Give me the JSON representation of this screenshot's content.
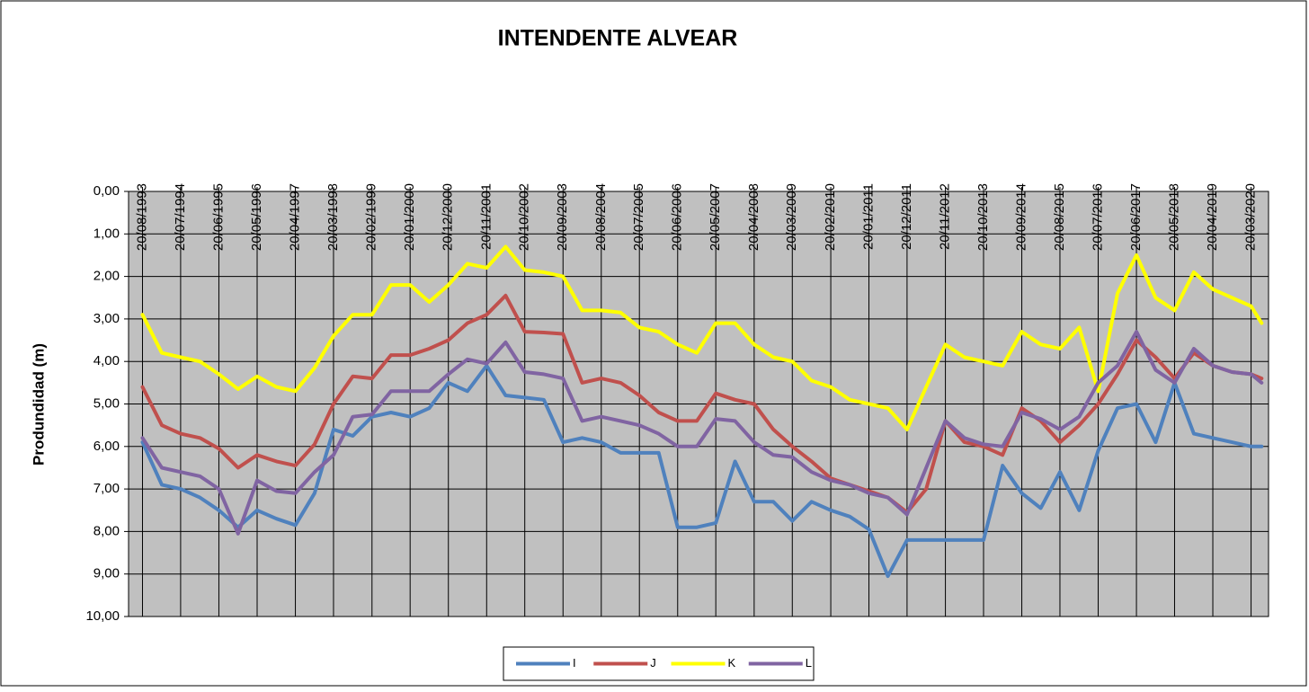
{
  "chart_data": {
    "type": "line",
    "title": "INTENDENTE ALVEAR",
    "y_label": "Produndidad (m)",
    "x": [
      "20/08/1993",
      "05/02/1994",
      "20/07/1994",
      "05/01/1995",
      "20/06/1995",
      "05/12/1995",
      "20/05/1996",
      "05/11/1996",
      "20/04/1997",
      "05/10/1997",
      "20/03/1998",
      "05/09/1998",
      "20/02/1999",
      "05/08/1999",
      "20/01/2000",
      "05/07/2000",
      "20/12/2000",
      "05/06/2001",
      "20/11/2001",
      "05/05/2002",
      "20/10/2002",
      "05/04/2003",
      "20/09/2003",
      "05/03/2004",
      "20/08/2004",
      "05/02/2005",
      "20/07/2005",
      "05/01/2006",
      "20/06/2006",
      "05/12/2006",
      "20/05/2007",
      "05/11/2007",
      "20/04/2008",
      "05/10/2008",
      "20/03/2009",
      "05/09/2009",
      "20/02/2010",
      "05/08/2010",
      "20/01/2011",
      "05/07/2011",
      "20/12/2011",
      "05/06/2012",
      "20/11/2012",
      "05/05/2013",
      "20/10/2013",
      "05/04/2014",
      "20/09/2014",
      "05/03/2015",
      "20/08/2015",
      "05/02/2016",
      "20/07/2016",
      "05/01/2017",
      "20/06/2017",
      "05/12/2017",
      "20/05/2018",
      "05/11/2018",
      "20/04/2019",
      "05/10/2019",
      "20/03/2020",
      "20/06/2020"
    ],
    "series": [
      {
        "name": "I",
        "color": "#4f81bd",
        "values": [
          5.9,
          6.9,
          7.0,
          7.2,
          7.5,
          7.9,
          7.5,
          7.7,
          7.85,
          7.1,
          5.6,
          5.75,
          5.3,
          5.2,
          5.3,
          5.1,
          4.5,
          4.7,
          4.1,
          4.8,
          4.85,
          4.9,
          5.9,
          5.8,
          5.9,
          6.15,
          6.15,
          6.15,
          7.9,
          7.9,
          7.8,
          6.35,
          7.3,
          7.3,
          7.75,
          7.3,
          7.5,
          7.65,
          7.95,
          9.05,
          8.2,
          8.2,
          8.2,
          8.2,
          8.2,
          6.45,
          7.1,
          7.45,
          6.6,
          7.5,
          6.1,
          5.1,
          5.0,
          5.9,
          4.5,
          5.7,
          5.8,
          5.9,
          6.0,
          6.0
        ]
      },
      {
        "name": "J",
        "color": "#c0504d",
        "values": [
          4.6,
          5.5,
          5.7,
          5.8,
          6.05,
          6.5,
          6.2,
          6.35,
          6.45,
          5.95,
          5.0,
          4.35,
          4.4,
          3.85,
          3.85,
          3.7,
          3.5,
          3.1,
          2.9,
          2.45,
          3.3,
          3.32,
          3.35,
          4.5,
          4.4,
          4.5,
          4.8,
          5.2,
          5.4,
          5.4,
          4.75,
          4.9,
          5.0,
          5.6,
          6.0,
          6.35,
          6.75,
          6.9,
          7.05,
          7.2,
          7.55,
          7.0,
          5.4,
          5.9,
          6.0,
          6.2,
          5.1,
          5.4,
          5.9,
          5.5,
          5.0,
          4.3,
          3.5,
          3.9,
          4.4,
          3.8,
          4.1,
          4.25,
          4.3,
          4.4
        ]
      },
      {
        "name": "K",
        "color": "#ffff00",
        "values": [
          2.9,
          3.8,
          3.9,
          4.0,
          4.3,
          4.65,
          4.35,
          4.6,
          4.7,
          4.15,
          3.4,
          2.9,
          2.9,
          2.2,
          2.2,
          2.6,
          2.2,
          1.7,
          1.8,
          1.3,
          1.85,
          1.9,
          2.0,
          2.8,
          2.8,
          2.85,
          3.2,
          3.3,
          3.6,
          3.8,
          3.1,
          3.1,
          3.6,
          3.9,
          4.0,
          4.45,
          4.6,
          4.9,
          5.0,
          5.1,
          5.6,
          4.6,
          3.6,
          3.9,
          4.0,
          4.1,
          3.3,
          3.6,
          3.7,
          3.2,
          4.7,
          2.4,
          1.5,
          2.5,
          2.8,
          1.9,
          2.3,
          2.5,
          2.7,
          3.1
        ]
      },
      {
        "name": "L",
        "color": "#8064a2",
        "values": [
          5.8,
          6.5,
          6.6,
          6.7,
          7.0,
          8.05,
          6.8,
          7.05,
          7.1,
          6.6,
          6.2,
          5.3,
          5.25,
          4.7,
          4.7,
          4.7,
          4.3,
          3.95,
          4.05,
          3.55,
          4.25,
          4.3,
          4.4,
          5.4,
          5.3,
          5.4,
          5.5,
          5.7,
          6.0,
          6.0,
          5.35,
          5.4,
          5.9,
          6.2,
          6.25,
          6.6,
          6.8,
          6.9,
          7.1,
          7.2,
          7.6,
          6.5,
          5.4,
          5.8,
          5.95,
          6.0,
          5.2,
          5.35,
          5.6,
          5.3,
          4.5,
          4.1,
          3.3,
          4.2,
          4.5,
          3.7,
          4.1,
          4.25,
          4.3,
          4.5
        ]
      }
    ],
    "xlim": [
      "20/04/1993",
      "20/08/2020"
    ],
    "xticks": [
      "20/08/1993",
      "20/07/1994",
      "20/06/1995",
      "20/05/1996",
      "20/04/1997",
      "20/03/1998",
      "20/02/1999",
      "20/01/2000",
      "20/12/2000",
      "20/11/2001",
      "20/10/2002",
      "20/09/2003",
      "20/08/2004",
      "20/07/2005",
      "20/06/2006",
      "20/05/2007",
      "20/04/2008",
      "20/03/2009",
      "20/02/2010",
      "20/01/2011",
      "20/12/2011",
      "20/11/2012",
      "20/10/2013",
      "20/09/2014",
      "20/08/2015",
      "20/07/2016",
      "20/06/2017",
      "20/05/2018",
      "20/04/2019",
      "20/03/2020"
    ],
    "ylim": [
      0,
      10
    ],
    "y_inverted": true,
    "yticks": [
      {
        "value": 0,
        "label": "0,00"
      },
      {
        "value": 1,
        "label": "1,00"
      },
      {
        "value": 2,
        "label": "2,00"
      },
      {
        "value": 3,
        "label": "3,00"
      },
      {
        "value": 4,
        "label": "4,00"
      },
      {
        "value": 5,
        "label": "5,00"
      },
      {
        "value": 6,
        "label": "6,00"
      },
      {
        "value": 7,
        "label": "7,00"
      },
      {
        "value": 8,
        "label": "8,00"
      },
      {
        "value": 9,
        "label": "9,00"
      },
      {
        "value": 10,
        "label": "10,00"
      }
    ],
    "grid": true,
    "plot_background": "#c0c0c0",
    "legend": "bottom"
  }
}
